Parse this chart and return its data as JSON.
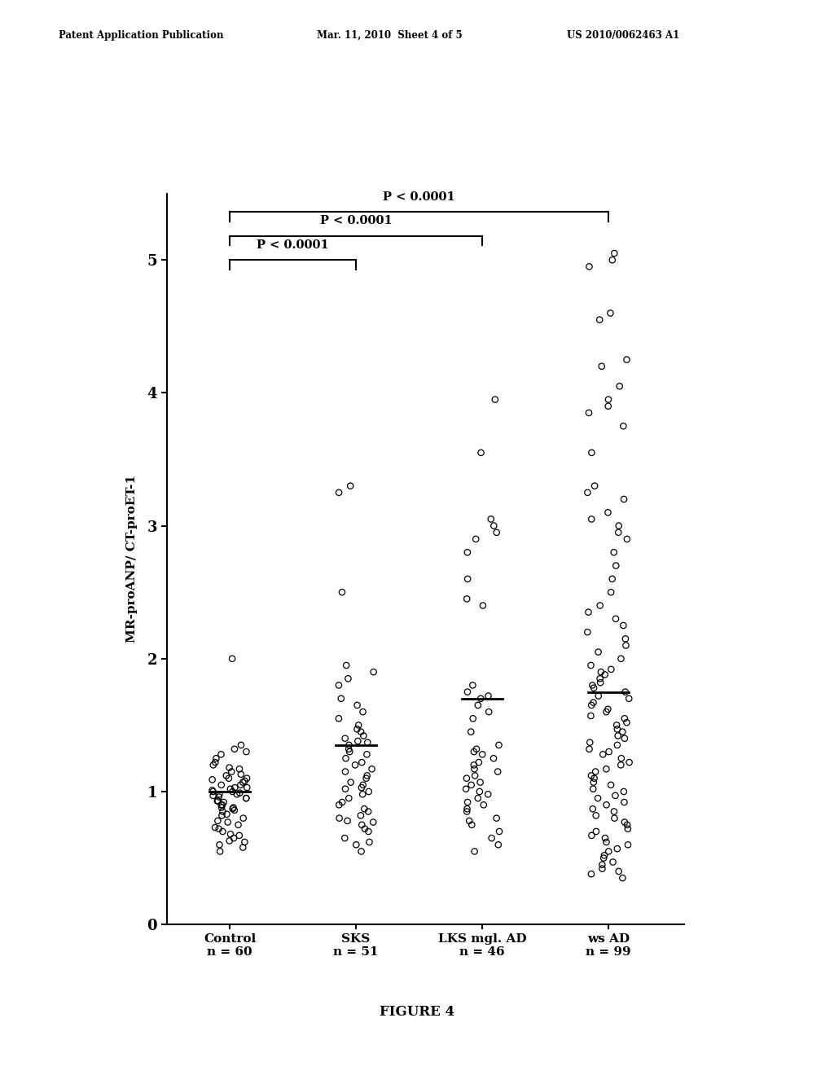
{
  "figure_label": "FIGURE 4",
  "ylabel": "MR-proANP/ CT-proET-1",
  "ylim": [
    0,
    5.5
  ],
  "yticks": [
    0,
    1,
    2,
    3,
    4,
    5
  ],
  "group_labels": [
    "Control\nn = 60",
    "SKS\nn = 51",
    "LKS mgl. AD\nn = 46",
    "ws AD\nn = 99"
  ],
  "group_positions": [
    1,
    2,
    3,
    4
  ],
  "medians": [
    1.0,
    1.35,
    1.7,
    1.75
  ],
  "control_data": [
    0.55,
    0.58,
    0.6,
    0.62,
    0.63,
    0.65,
    0.67,
    0.68,
    0.7,
    0.72,
    0.73,
    0.75,
    0.77,
    0.78,
    0.8,
    0.82,
    0.83,
    0.85,
    0.86,
    0.87,
    0.88,
    0.88,
    0.9,
    0.9,
    0.92,
    0.93,
    0.93,
    0.95,
    0.95,
    0.96,
    0.97,
    0.98,
    0.98,
    0.99,
    1.0,
    1.0,
    1.01,
    1.02,
    1.03,
    1.03,
    1.05,
    1.05,
    1.07,
    1.08,
    1.09,
    1.1,
    1.1,
    1.12,
    1.13,
    1.15,
    1.17,
    1.18,
    1.2,
    1.22,
    1.25,
    1.28,
    1.3,
    1.32,
    1.35,
    2.0
  ],
  "sks_data": [
    0.55,
    0.6,
    0.62,
    0.65,
    0.7,
    0.72,
    0.75,
    0.77,
    0.78,
    0.8,
    0.82,
    0.85,
    0.87,
    0.9,
    0.92,
    0.95,
    0.98,
    1.0,
    1.02,
    1.03,
    1.05,
    1.07,
    1.1,
    1.12,
    1.15,
    1.17,
    1.2,
    1.22,
    1.25,
    1.28,
    1.3,
    1.32,
    1.35,
    1.37,
    1.38,
    1.4,
    1.42,
    1.45,
    1.47,
    1.5,
    1.55,
    1.6,
    1.65,
    1.7,
    1.8,
    1.85,
    1.9,
    1.95,
    2.5,
    3.25,
    3.3
  ],
  "lks_data": [
    0.55,
    0.6,
    0.65,
    0.7,
    0.75,
    0.78,
    0.8,
    0.85,
    0.87,
    0.9,
    0.92,
    0.95,
    0.98,
    1.0,
    1.02,
    1.05,
    1.07,
    1.1,
    1.12,
    1.15,
    1.17,
    1.2,
    1.22,
    1.25,
    1.28,
    1.3,
    1.32,
    1.35,
    1.45,
    1.55,
    1.6,
    1.65,
    1.7,
    1.72,
    1.75,
    1.8,
    2.4,
    2.45,
    2.6,
    2.8,
    2.9,
    2.95,
    3.0,
    3.05,
    3.55,
    3.95
  ],
  "wsad_data": [
    0.35,
    0.38,
    0.4,
    0.42,
    0.45,
    0.47,
    0.5,
    0.52,
    0.55,
    0.57,
    0.6,
    0.62,
    0.65,
    0.67,
    0.7,
    0.72,
    0.75,
    0.77,
    0.8,
    0.82,
    0.85,
    0.87,
    0.9,
    0.92,
    0.95,
    0.97,
    1.0,
    1.02,
    1.05,
    1.07,
    1.1,
    1.12,
    1.15,
    1.17,
    1.2,
    1.22,
    1.25,
    1.28,
    1.3,
    1.32,
    1.35,
    1.37,
    1.4,
    1.42,
    1.45,
    1.47,
    1.5,
    1.52,
    1.55,
    1.57,
    1.6,
    1.62,
    1.65,
    1.67,
    1.7,
    1.72,
    1.75,
    1.78,
    1.8,
    1.82,
    1.85,
    1.88,
    1.9,
    1.92,
    1.95,
    2.0,
    2.05,
    2.1,
    2.15,
    2.2,
    2.25,
    2.3,
    2.35,
    2.4,
    2.5,
    2.6,
    2.7,
    2.8,
    2.9,
    2.95,
    3.0,
    3.05,
    3.1,
    3.2,
    3.25,
    3.3,
    3.55,
    3.75,
    3.85,
    3.9,
    3.95,
    4.05,
    4.2,
    4.25,
    4.55,
    4.6,
    4.95,
    5.0,
    5.05
  ],
  "background_color": "#ffffff",
  "dot_color": "#000000",
  "dot_size": 28,
  "dot_linewidth": 0.9,
  "header_left": "Patent Application Publication",
  "header_mid": "Mar. 11, 2010  Sheet 4 of 5",
  "header_right": "US 2010/0062463 A1"
}
